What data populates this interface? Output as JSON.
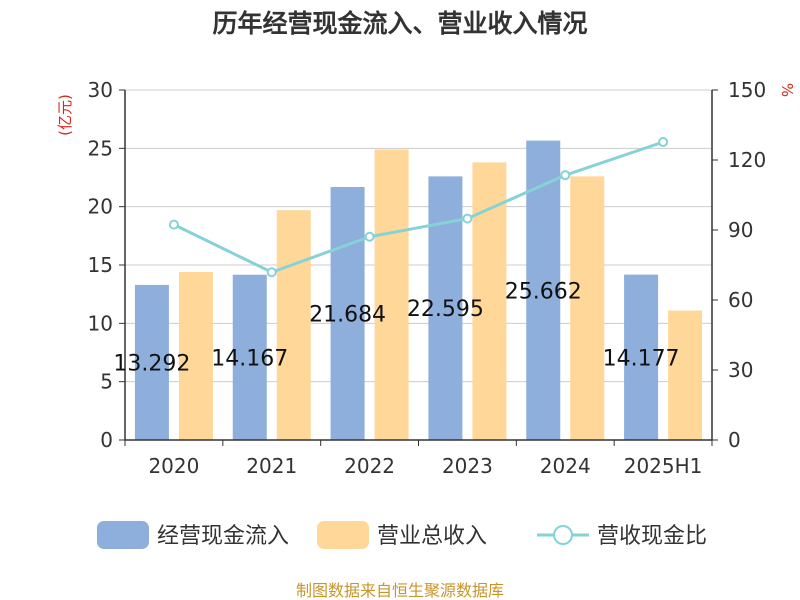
{
  "chart_data": {
    "type": "bar",
    "title": "历年经营现金流入、营业收入情况",
    "categories": [
      "2020",
      "2021",
      "2022",
      "2023",
      "2024",
      "2025H1"
    ],
    "series": [
      {
        "name": "经营现金流入",
        "axis": "left",
        "color": "#8eaedb",
        "values": [
          13.292,
          14.167,
          21.684,
          22.595,
          25.662,
          14.177
        ]
      },
      {
        "name": "营业总收入",
        "axis": "left",
        "color": "#ffd899",
        "values": [
          14.4,
          19.7,
          24.9,
          23.8,
          22.6,
          11.1
        ]
      },
      {
        "name": "营收现金比",
        "axis": "right",
        "type": "line",
        "color": "#85d3d6",
        "values": [
          92.3,
          71.9,
          87.1,
          94.9,
          113.5,
          127.7
        ]
      }
    ],
    "data_labels": [
      "13.292",
      "14.167",
      "21.684",
      "22.595",
      "25.662",
      "14.177"
    ],
    "left_axis": {
      "unit": "(亿元)",
      "ylim": [
        0,
        30
      ],
      "ticks": [
        "0",
        "5",
        "10",
        "15",
        "20",
        "25",
        "30"
      ]
    },
    "right_axis": {
      "unit": "%",
      "ylim": [
        0,
        150
      ],
      "ticks": [
        "0",
        "30",
        "60",
        "90",
        "120",
        "150"
      ]
    },
    "grid": true,
    "legend_position": "bottom"
  },
  "source": "制图数据来自恒生聚源数据库"
}
